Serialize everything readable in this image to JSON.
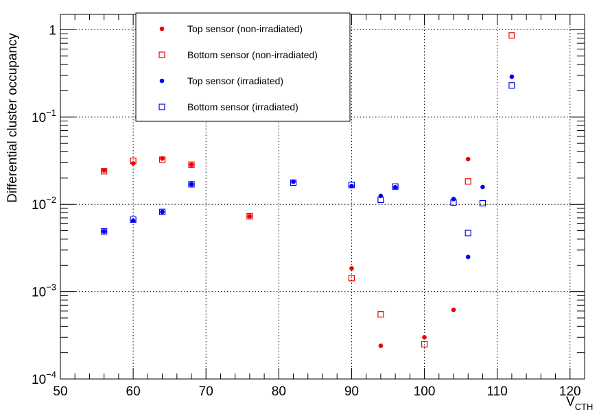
{
  "chart_data": {
    "type": "scatter",
    "title": "",
    "xlabel": "V",
    "xlabel_sub": "CTH",
    "ylabel": "Differential cluster occupancy",
    "xlim": [
      50,
      122
    ],
    "ylim": [
      0.0001,
      1.5
    ],
    "yscale": "log",
    "grid": true,
    "legend_position": "top-left",
    "x_ticks": [
      50,
      60,
      70,
      80,
      90,
      100,
      110,
      120
    ],
    "x_tick_labels": [
      "50",
      "60",
      "70",
      "80",
      "90",
      "100",
      "110",
      "120"
    ],
    "y_ticks": [
      {
        "value": 1,
        "base": "1",
        "exp": ""
      },
      {
        "value": 0.1,
        "base": "10",
        "exp": "−1"
      },
      {
        "value": 0.01,
        "base": "10",
        "exp": "−2"
      },
      {
        "value": 0.001,
        "base": "10",
        "exp": "−3"
      },
      {
        "value": 0.0001,
        "base": "10",
        "exp": "−4"
      }
    ],
    "series": [
      {
        "name": "Top  sensor (non-irradiated)",
        "marker": "circle",
        "color": "#ee0000",
        "points": [
          [
            56,
            0.0245
          ],
          [
            60,
            0.0295
          ],
          [
            64,
            0.0335
          ],
          [
            68,
            0.0285
          ],
          [
            76,
            0.0073
          ],
          [
            90,
            0.00185
          ],
          [
            94,
            0.00024
          ],
          [
            100,
            0.0003
          ],
          [
            104,
            0.00062
          ],
          [
            106,
            0.033
          ]
        ]
      },
      {
        "name": "Bottom sensor (non-irradiated)",
        "marker": "open-square",
        "color": "#ee0000",
        "points": [
          [
            56,
            0.024
          ],
          [
            60,
            0.0315
          ],
          [
            64,
            0.0325
          ],
          [
            68,
            0.0285
          ],
          [
            76,
            0.0073
          ],
          [
            90,
            0.00143
          ],
          [
            94,
            0.00055
          ],
          [
            100,
            0.00025
          ],
          [
            106,
            0.0183
          ],
          [
            112,
            0.86
          ]
        ]
      },
      {
        "name": "Top  sensor (irradiated)",
        "marker": "circle",
        "color": "#0000ee",
        "points": [
          [
            56,
            0.0049
          ],
          [
            60,
            0.0065
          ],
          [
            64,
            0.0082
          ],
          [
            68,
            0.017
          ],
          [
            82,
            0.0182
          ],
          [
            90,
            0.0162
          ],
          [
            94,
            0.0125
          ],
          [
            96,
            0.0157
          ],
          [
            104,
            0.0115
          ],
          [
            106,
            0.0025
          ],
          [
            108,
            0.0158
          ],
          [
            112,
            0.29
          ]
        ]
      },
      {
        "name": "Bottom sensor (irradiated)",
        "marker": "open-square",
        "color": "#0000ee",
        "points": [
          [
            56,
            0.0049
          ],
          [
            60,
            0.0067
          ],
          [
            64,
            0.0082
          ],
          [
            68,
            0.017
          ],
          [
            82,
            0.0177
          ],
          [
            90,
            0.0167
          ],
          [
            94,
            0.0113
          ],
          [
            96,
            0.016
          ],
          [
            104,
            0.0105
          ],
          [
            106,
            0.0047
          ],
          [
            108,
            0.0103
          ],
          [
            112,
            0.23
          ]
        ]
      }
    ]
  }
}
